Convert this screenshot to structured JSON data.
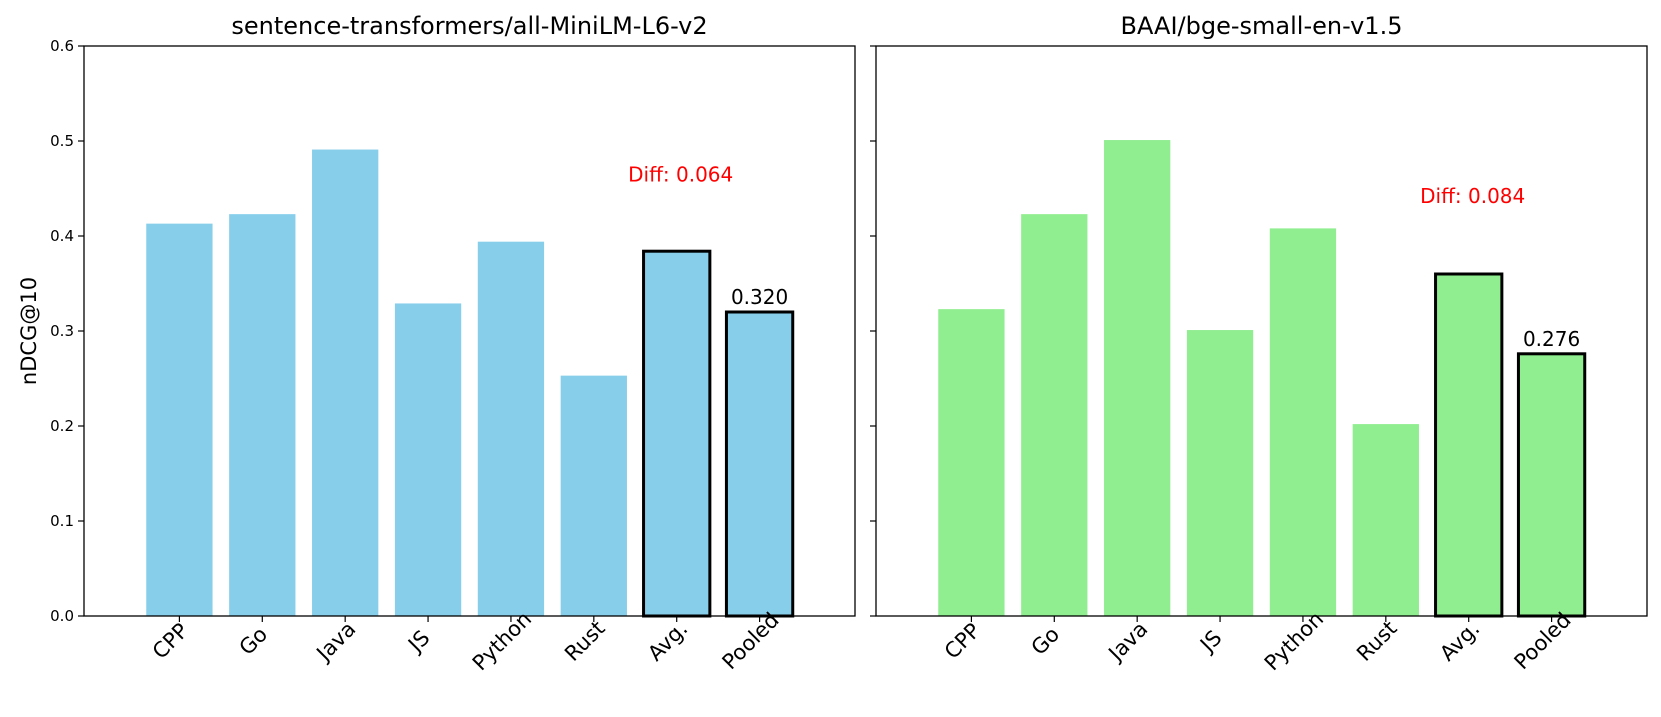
{
  "chart_data": [
    {
      "type": "bar",
      "title": "sentence-transformers/all-MiniLM-L6-v2",
      "ylabel": "nDCG@10",
      "xlabel": "",
      "categories": [
        "CPP",
        "Go",
        "Java",
        "JS",
        "Python",
        "Rust",
        "Avg.",
        "Pooled"
      ],
      "values": [
        0.413,
        0.423,
        0.491,
        0.329,
        0.394,
        0.253,
        0.384,
        0.32
      ],
      "highlighted": [
        "Avg.",
        "Pooled"
      ],
      "value_labels": {
        "Avg.": "0.384",
        "Pooled": "0.320"
      },
      "annotation": "Diff: 0.064",
      "annotation_value": 0.465,
      "color": "#87ceeb",
      "ylim": [
        0,
        0.6
      ],
      "yticks": [
        "0.0",
        "0.1",
        "0.2",
        "0.3",
        "0.4",
        "0.5",
        "0.6"
      ],
      "grid": false
    },
    {
      "type": "bar",
      "title": "BAAI/bge-small-en-v1.5",
      "ylabel": "",
      "xlabel": "",
      "categories": [
        "CPP",
        "Go",
        "Java",
        "JS",
        "Python",
        "Rust",
        "Avg.",
        "Pooled"
      ],
      "values": [
        0.323,
        0.423,
        0.501,
        0.301,
        0.408,
        0.202,
        0.36,
        0.276
      ],
      "highlighted": [
        "Avg.",
        "Pooled"
      ],
      "value_labels": {
        "Avg.": "0.360",
        "Pooled": "0.276"
      },
      "annotation": "Diff: 0.084",
      "annotation_value": 0.442,
      "color": "#90ee90",
      "ylim": [
        0,
        0.6
      ],
      "yticks": [],
      "grid": false
    }
  ]
}
